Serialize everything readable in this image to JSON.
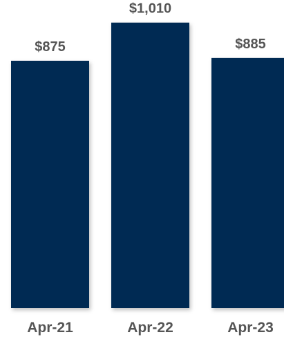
{
  "chart_data": {
    "type": "bar",
    "categories": [
      "Apr-21",
      "Apr-22",
      "Apr-23"
    ],
    "values": [
      875,
      1010,
      885
    ],
    "value_labels": [
      "$875",
      "$1,010",
      "$885"
    ],
    "title": "",
    "xlabel": "",
    "ylabel": "",
    "ylim": [
      0,
      1090
    ],
    "grid": false,
    "legend": "none",
    "bar_color": "#002b52"
  }
}
